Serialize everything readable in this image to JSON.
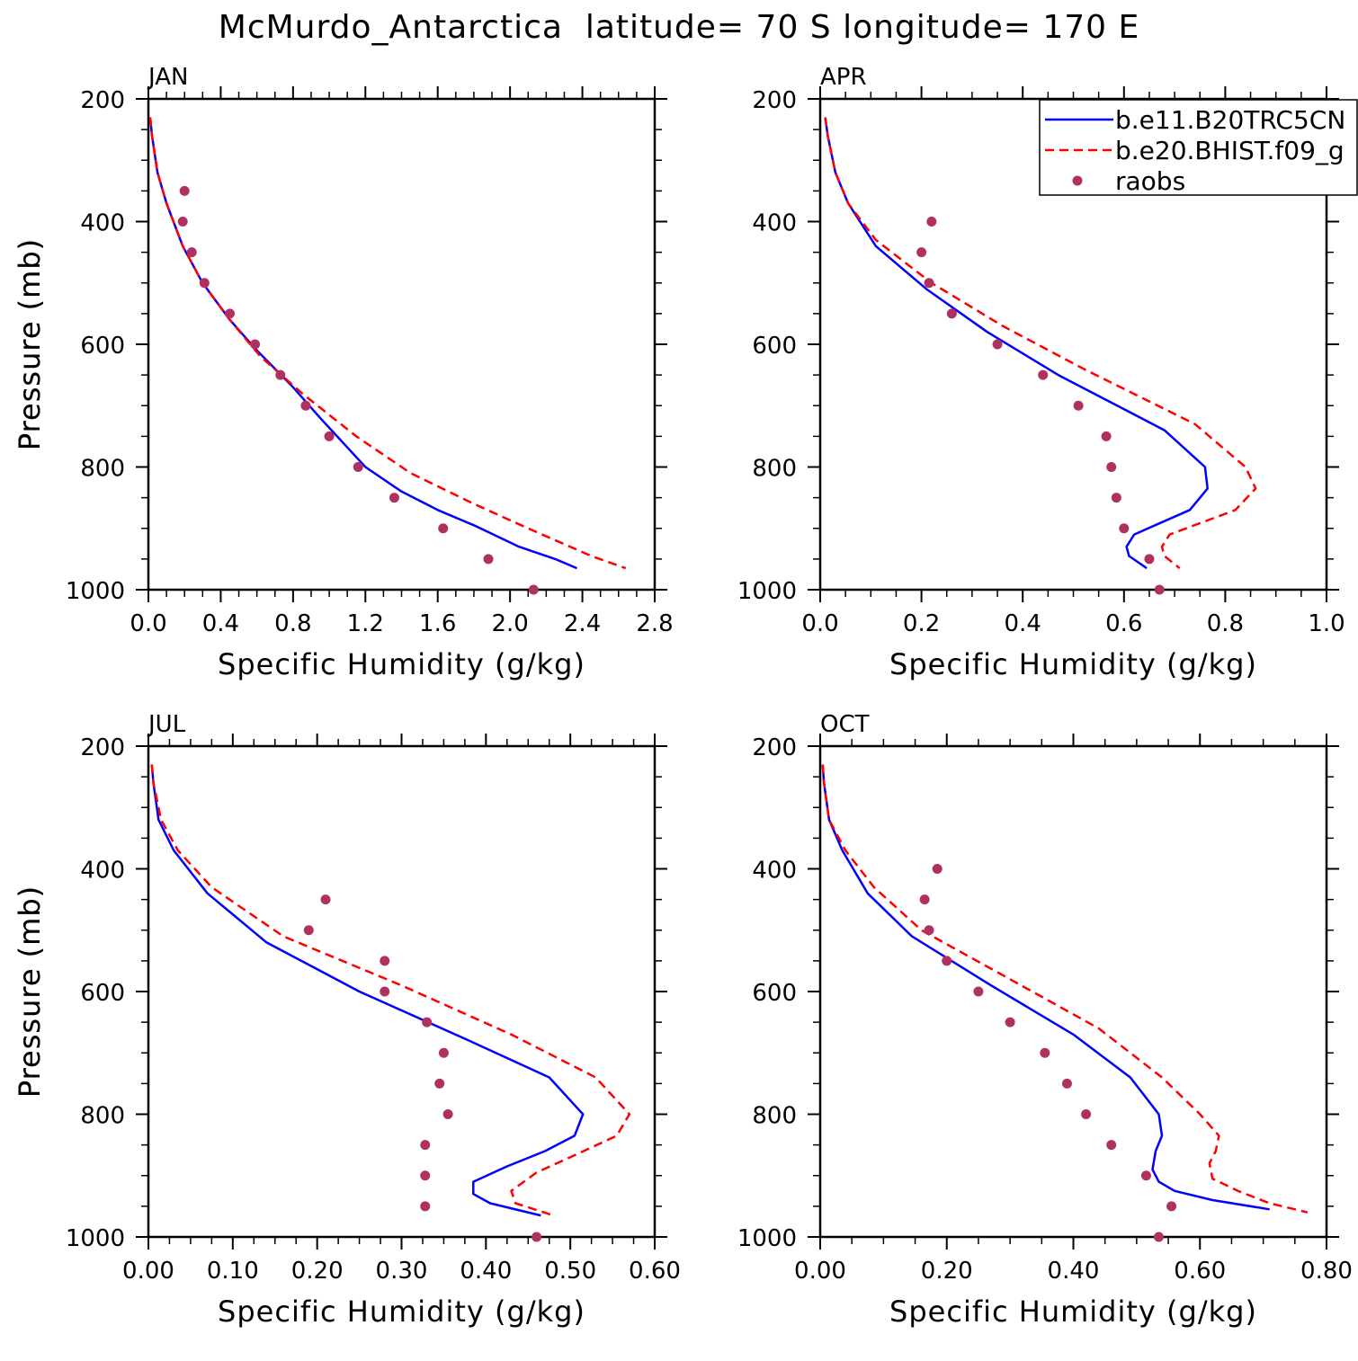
{
  "figure": {
    "title": "McMurdo_Antarctica  latitude= 70 S longitude= 170 E"
  },
  "chart_data": [
    {
      "type": "line",
      "title": "JAN",
      "xlabel": "Specific Humidity (g/kg)",
      "ylabel": "Pressure (mb)",
      "xlim": [
        0,
        2.8
      ],
      "ylim": [
        200,
        1000
      ],
      "y_inverted": true,
      "xticks": [
        0,
        0.4,
        0.8,
        1.2,
        1.6,
        2.0,
        2.4,
        2.8
      ],
      "xtick_labels": [
        "0.0",
        "0.4",
        "0.8",
        "1.2",
        "1.6",
        "2.0",
        "2.4",
        "2.8"
      ],
      "yticks": [
        200,
        400,
        600,
        800,
        1000
      ],
      "ytick_labels": [
        "200",
        "400",
        "600",
        "800",
        "1000"
      ],
      "legend": false,
      "series": [
        {
          "name": "b.e11.B20TRC5CN",
          "style": "solid",
          "color": "#0000ff",
          "x": [
            0.01,
            0.02,
            0.05,
            0.1,
            0.19,
            0.3,
            0.45,
            0.6,
            0.8,
            0.95,
            1.2,
            1.4,
            1.6,
            1.8,
            2.05,
            2.25,
            2.37
          ],
          "y": [
            230,
            260,
            320,
            370,
            440,
            500,
            560,
            610,
            670,
            720,
            800,
            840,
            870,
            895,
            930,
            950,
            965
          ]
        },
        {
          "name": "b.e20.BHIST.f09_g",
          "style": "dashed",
          "color": "#ff0000",
          "x": [
            0.01,
            0.02,
            0.05,
            0.1,
            0.19,
            0.3,
            0.45,
            0.62,
            0.85,
            1.15,
            1.45,
            1.8,
            2.1,
            2.45,
            2.64
          ],
          "y": [
            230,
            260,
            320,
            370,
            440,
            500,
            560,
            620,
            680,
            750,
            810,
            860,
            900,
            945,
            965
          ]
        },
        {
          "name": "raobs",
          "style": "markers",
          "color": "#b03060",
          "x": [
            0.2,
            0.19,
            0.24,
            0.31,
            0.45,
            0.59,
            0.73,
            0.87,
            1.0,
            1.16,
            1.36,
            1.63,
            1.88,
            2.13
          ],
          "y": [
            350,
            400,
            450,
            500,
            550,
            600,
            650,
            700,
            750,
            800,
            850,
            900,
            950,
            1000
          ]
        }
      ]
    },
    {
      "type": "line",
      "title": "APR",
      "xlabel": "Specific Humidity (g/kg)",
      "ylabel": "Pressure (mb)",
      "xlim": [
        0,
        1.0
      ],
      "ylim": [
        200,
        1000
      ],
      "y_inverted": true,
      "xticks": [
        0,
        0.2,
        0.4,
        0.6,
        0.8,
        1.0
      ],
      "xtick_labels": [
        "0.0",
        "0.2",
        "0.4",
        "0.6",
        "0.8",
        "1.0"
      ],
      "yticks": [
        200,
        400,
        600,
        800,
        1000
      ],
      "ytick_labels": [
        "200",
        "400",
        "600",
        "800",
        "1000"
      ],
      "legend": true,
      "legend_position": "top-right",
      "series": [
        {
          "name": "b.e11.B20TRC5CN",
          "style": "solid",
          "color": "#0000ff",
          "x": [
            0.01,
            0.015,
            0.03,
            0.055,
            0.11,
            0.21,
            0.33,
            0.47,
            0.68,
            0.76,
            0.765,
            0.73,
            0.62,
            0.605,
            0.61,
            0.645
          ],
          "y": [
            230,
            260,
            320,
            370,
            440,
            510,
            580,
            650,
            740,
            800,
            835,
            870,
            910,
            930,
            945,
            965
          ]
        },
        {
          "name": "b.e20.BHIST.f09_g",
          "style": "dashed",
          "color": "#ff0000",
          "x": [
            0.01,
            0.015,
            0.03,
            0.055,
            0.11,
            0.22,
            0.36,
            0.52,
            0.74,
            0.84,
            0.86,
            0.82,
            0.69,
            0.675,
            0.68,
            0.71
          ],
          "y": [
            230,
            260,
            320,
            370,
            430,
            500,
            570,
            640,
            730,
            800,
            835,
            870,
            910,
            930,
            945,
            965
          ]
        },
        {
          "name": "raobs",
          "style": "markers",
          "color": "#b03060",
          "x": [
            0.22,
            0.2,
            0.215,
            0.26,
            0.35,
            0.44,
            0.51,
            0.565,
            0.575,
            0.585,
            0.6,
            0.65,
            0.67
          ],
          "y": [
            400,
            450,
            500,
            550,
            600,
            650,
            700,
            750,
            800,
            850,
            900,
            950,
            1000
          ]
        }
      ]
    },
    {
      "type": "line",
      "title": "JUL",
      "xlabel": "Specific Humidity (g/kg)",
      "ylabel": "Pressure (mb)",
      "xlim": [
        0,
        0.6
      ],
      "ylim": [
        200,
        1000
      ],
      "y_inverted": true,
      "xticks": [
        0,
        0.1,
        0.2,
        0.3,
        0.4,
        0.5,
        0.6
      ],
      "xtick_labels": [
        "0.00",
        "0.10",
        "0.20",
        "0.30",
        "0.40",
        "0.50",
        "0.60"
      ],
      "yticks": [
        200,
        400,
        600,
        800,
        1000
      ],
      "ytick_labels": [
        "200",
        "400",
        "600",
        "800",
        "1000"
      ],
      "legend": false,
      "series": [
        {
          "name": "b.e11.B20TRC5CN",
          "style": "solid",
          "color": "#0000ff",
          "x": [
            0.004,
            0.006,
            0.012,
            0.03,
            0.07,
            0.14,
            0.25,
            0.38,
            0.475,
            0.515,
            0.505,
            0.47,
            0.425,
            0.385,
            0.385,
            0.405,
            0.465
          ],
          "y": [
            230,
            260,
            320,
            370,
            440,
            520,
            600,
            680,
            740,
            800,
            835,
            860,
            885,
            910,
            930,
            945,
            965
          ]
        },
        {
          "name": "b.e20.BHIST.f09_g",
          "style": "dashed",
          "color": "#ff0000",
          "x": [
            0.004,
            0.006,
            0.015,
            0.035,
            0.075,
            0.16,
            0.3,
            0.43,
            0.53,
            0.57,
            0.555,
            0.5,
            0.46,
            0.43,
            0.435,
            0.48
          ],
          "y": [
            230,
            260,
            320,
            370,
            430,
            510,
            590,
            670,
            740,
            800,
            835,
            870,
            895,
            925,
            945,
            965
          ]
        },
        {
          "name": "raobs",
          "style": "markers",
          "color": "#b03060",
          "x": [
            0.21,
            0.19,
            0.28,
            0.28,
            0.33,
            0.35,
            0.345,
            0.355,
            0.328,
            0.328,
            0.328,
            0.46
          ],
          "y": [
            450,
            500,
            550,
            600,
            650,
            700,
            750,
            800,
            850,
            900,
            950,
            1000
          ]
        }
      ]
    },
    {
      "type": "line",
      "title": "OCT",
      "xlabel": "Specific Humidity (g/kg)",
      "ylabel": "Pressure (mb)",
      "xlim": [
        0,
        0.8
      ],
      "ylim": [
        200,
        1000
      ],
      "y_inverted": true,
      "xticks": [
        0,
        0.2,
        0.4,
        0.6,
        0.8
      ],
      "xtick_labels": [
        "0.00",
        "0.20",
        "0.40",
        "0.60",
        "0.80"
      ],
      "yticks": [
        200,
        400,
        600,
        800,
        1000
      ],
      "ytick_labels": [
        "200",
        "400",
        "600",
        "800",
        "1000"
      ],
      "legend": false,
      "series": [
        {
          "name": "b.e11.B20TRC5CN",
          "style": "solid",
          "color": "#0000ff",
          "x": [
            0.004,
            0.006,
            0.014,
            0.035,
            0.075,
            0.145,
            0.27,
            0.4,
            0.49,
            0.535,
            0.54,
            0.53,
            0.525,
            0.535,
            0.56,
            0.62,
            0.71
          ],
          "y": [
            230,
            260,
            320,
            370,
            440,
            510,
            590,
            670,
            740,
            800,
            835,
            860,
            890,
            910,
            925,
            940,
            955
          ]
        },
        {
          "name": "b.e20.BHIST.f09_g",
          "style": "dashed",
          "color": "#ff0000",
          "x": [
            0.004,
            0.006,
            0.014,
            0.04,
            0.085,
            0.16,
            0.3,
            0.44,
            0.54,
            0.6,
            0.63,
            0.625,
            0.615,
            0.62,
            0.66,
            0.71,
            0.77
          ],
          "y": [
            230,
            260,
            320,
            370,
            430,
            500,
            580,
            660,
            740,
            800,
            835,
            860,
            880,
            905,
            925,
            945,
            960
          ]
        },
        {
          "name": "raobs",
          "style": "markers",
          "color": "#b03060",
          "x": [
            0.185,
            0.165,
            0.172,
            0.2,
            0.25,
            0.3,
            0.355,
            0.39,
            0.42,
            0.46,
            0.515,
            0.555,
            0.535
          ],
          "y": [
            400,
            450,
            500,
            550,
            600,
            650,
            700,
            750,
            800,
            850,
            900,
            950,
            1000
          ]
        }
      ]
    }
  ]
}
